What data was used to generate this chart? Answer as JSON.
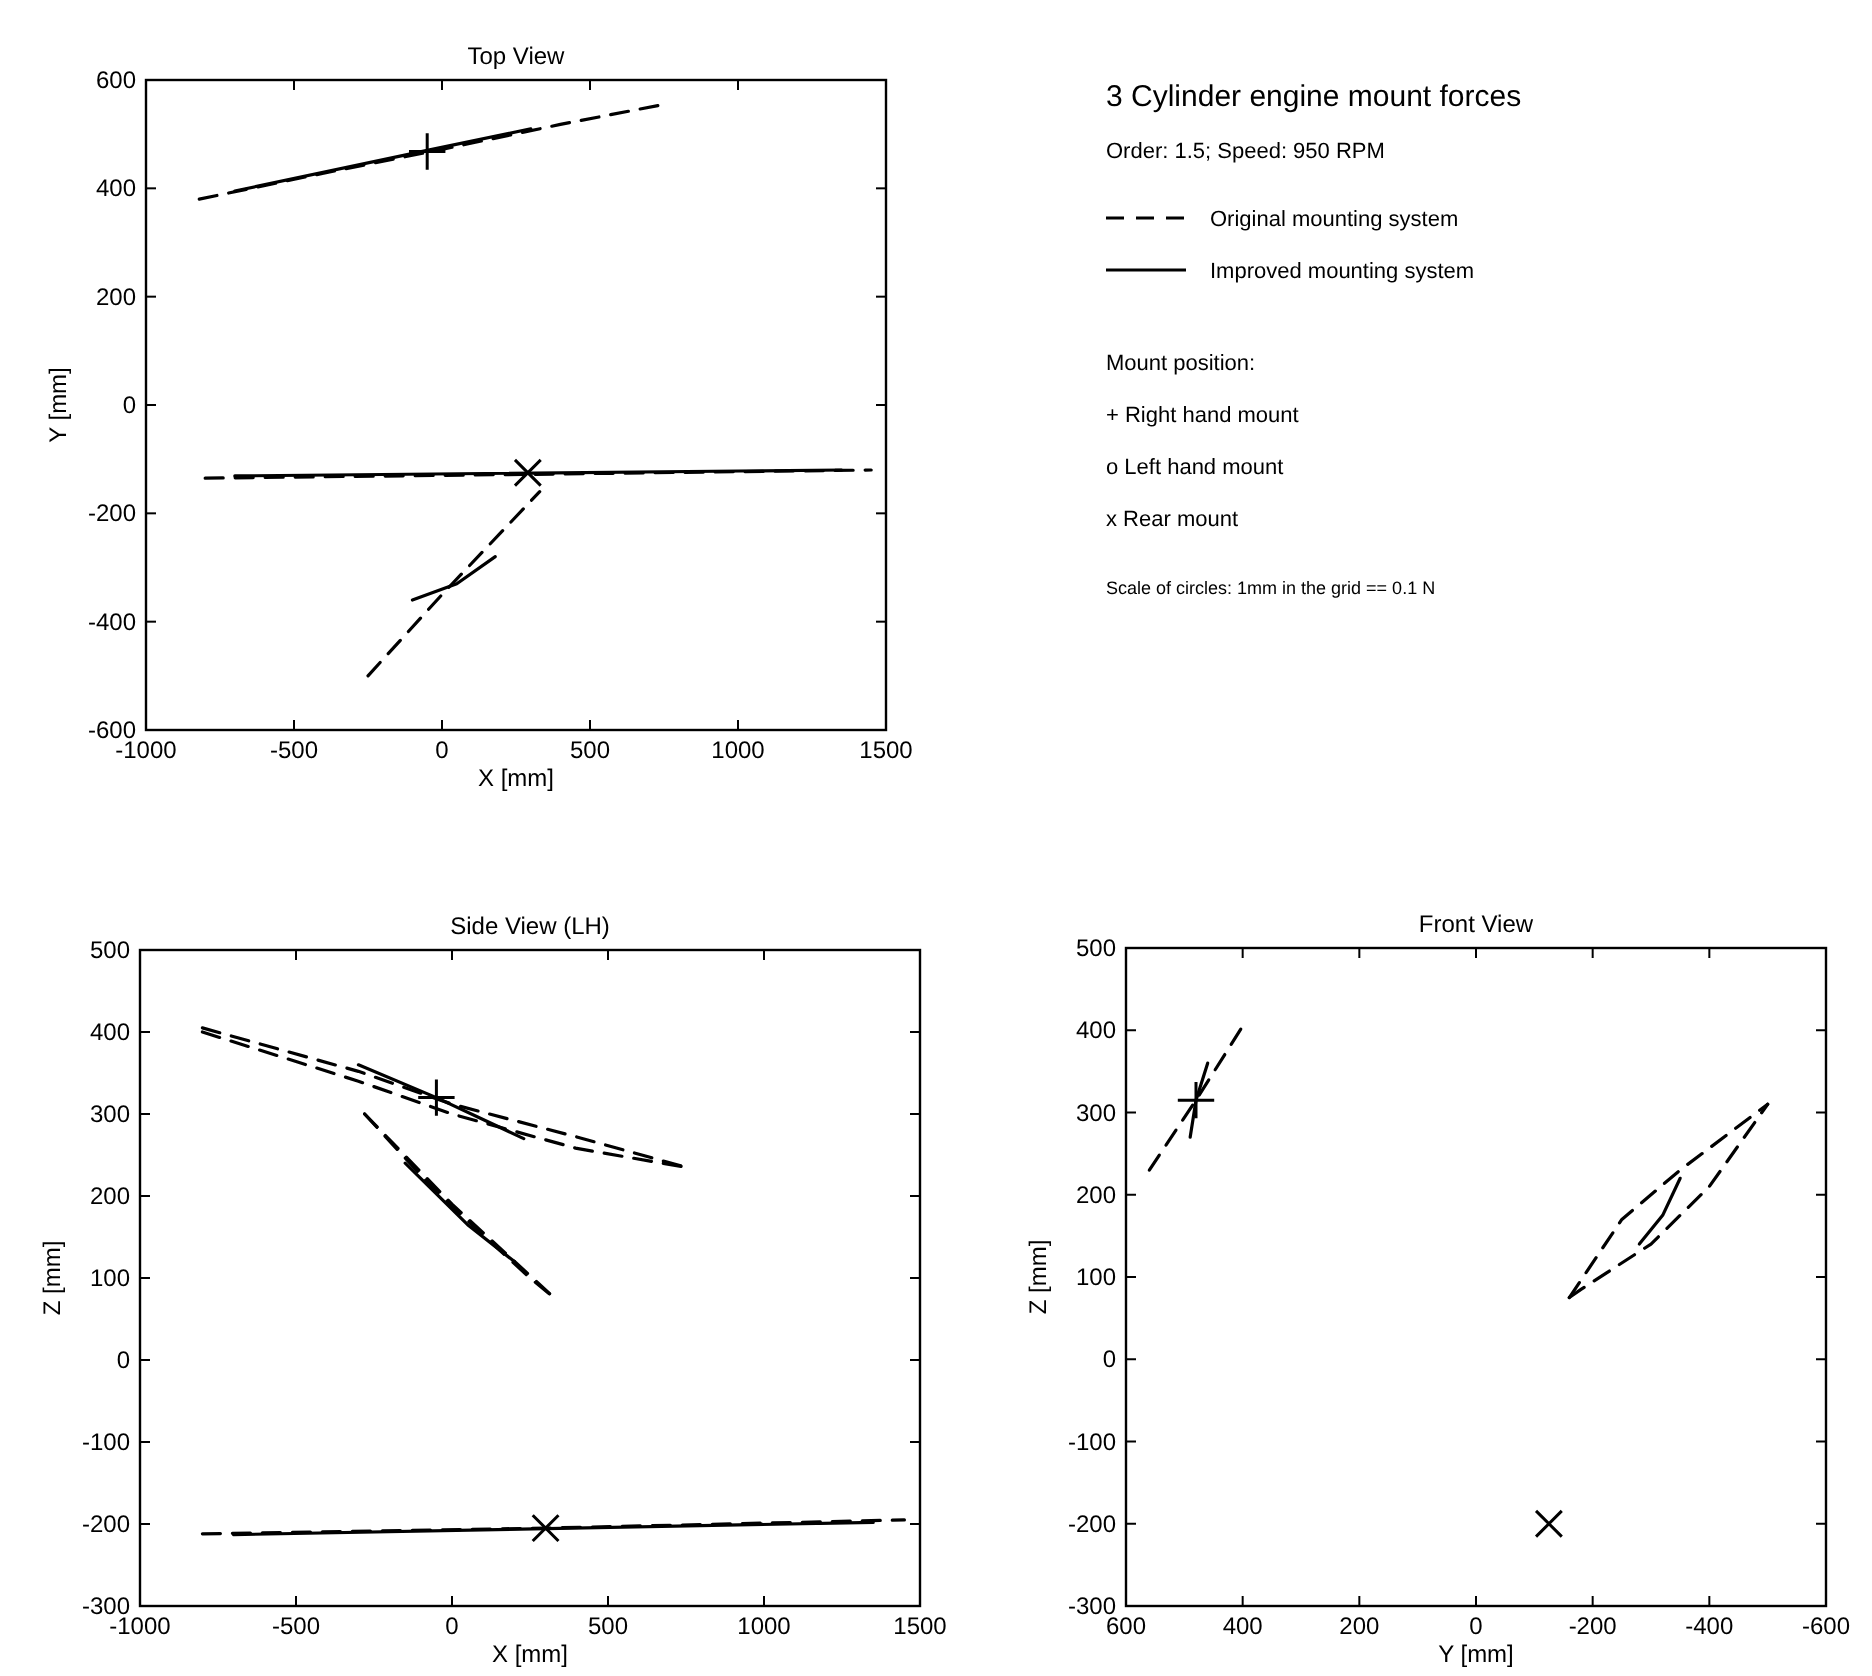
{
  "chart_data": [
    {
      "type": "line",
      "title": "Top View",
      "xlabel": "X [mm]",
      "ylabel": "Y [mm]",
      "xlim": [
        -1000,
        1500
      ],
      "xticks": [
        -1000,
        -500,
        0,
        500,
        1000,
        1500
      ],
      "ylim": [
        -600,
        600
      ],
      "yticks": [
        -600,
        -400,
        -200,
        0,
        200,
        400,
        600
      ],
      "legend": "right",
      "annotations": [
        "3 Cylinder engine mount forces",
        "Order: 1.5; Speed: 950 RPM",
        "Mount position:",
        "+ Right hand mount",
        "o Left hand mount",
        "x Rear mount",
        "Scale of circles: 1mm in the grid == 0.1 N"
      ],
      "series": [
        {
          "name": "Original mounting system",
          "line_style": "dashed",
          "color": "#000000",
          "x": [
            -820,
            -400,
            0,
            400,
            750
          ],
          "values": [
            380,
            428,
            472,
            518,
            555
          ]
        },
        {
          "name": "Improved mounting system",
          "line_style": "solid",
          "color": "#000000",
          "x": [
            -700,
            -50,
            300
          ],
          "values": [
            395,
            470,
            510
          ]
        },
        {
          "line_style": "dashed",
          "color": "#000000",
          "x": [
            -800,
            300,
            1450
          ],
          "values": [
            -135,
            -128,
            -120
          ]
        },
        {
          "line_style": "dashed",
          "color": "#000000",
          "x": [
            -250,
            0,
            330
          ],
          "values": [
            -500,
            -350,
            -160
          ]
        },
        {
          "line_style": "solid",
          "color": "#000000",
          "x": [
            -700,
            1350
          ],
          "values": [
            -131,
            -120
          ]
        },
        {
          "line_style": "solid",
          "color": "#000000",
          "x": [
            -100,
            50,
            180
          ],
          "values": [
            -360,
            -330,
            -280
          ]
        },
        {
          "type": "scatter",
          "marker": "plus",
          "color": "#000000",
          "x": [
            -50
          ],
          "values": [
            468
          ]
        },
        {
          "type": "scatter",
          "marker": "cross",
          "color": "#000000",
          "x": [
            290
          ],
          "values": [
            -125
          ]
        }
      ]
    },
    {
      "type": "line",
      "title": "Side View (LH)",
      "xlabel": "X [mm]",
      "ylabel": "Z [mm]",
      "xlim": [
        -1000,
        1500
      ],
      "xticks": [
        -1000,
        -500,
        0,
        500,
        1000,
        1500
      ],
      "ylim": [
        -300,
        500
      ],
      "yticks": [
        -300,
        -200,
        -100,
        0,
        100,
        200,
        300,
        400,
        500
      ],
      "series": [
        {
          "line_style": "dashed",
          "color": "#000000",
          "x": [
            -800,
            -300,
            0,
            400,
            750
          ],
          "values": [
            405,
            352,
            312,
            272,
            235
          ]
        },
        {
          "line_style": "dashed",
          "color": "#000000",
          "x": [
            -800,
            -300,
            0,
            400,
            750
          ],
          "values": [
            400,
            340,
            300,
            258,
            235
          ]
        },
        {
          "line_style": "dashed",
          "color": "#000000",
          "x": [
            -280,
            0,
            330
          ],
          "values": [
            300,
            190,
            75
          ]
        },
        {
          "line_style": "dashed",
          "color": "#000000",
          "x": [
            -280,
            -50,
            250,
            330
          ],
          "values": [
            300,
            205,
            100,
            75
          ]
        },
        {
          "line_style": "dashed",
          "color": "#000000",
          "x": [
            -800,
            300,
            1450
          ],
          "values": [
            -212,
            -205,
            -195
          ]
        },
        {
          "line_style": "solid",
          "color": "#000000",
          "x": [
            -300,
            -50,
            230
          ],
          "values": [
            360,
            320,
            270
          ]
        },
        {
          "line_style": "solid",
          "color": "#000000",
          "x": [
            -150,
            50,
            200
          ],
          "values": [
            240,
            165,
            120
          ]
        },
        {
          "line_style": "solid",
          "color": "#000000",
          "x": [
            -700,
            1350
          ],
          "values": [
            -213,
            -198
          ]
        },
        {
          "type": "scatter",
          "marker": "plus",
          "color": "#000000",
          "x": [
            -50
          ],
          "values": [
            320
          ]
        },
        {
          "type": "scatter",
          "marker": "cross",
          "color": "#000000",
          "x": [
            300
          ],
          "values": [
            -205
          ]
        }
      ]
    },
    {
      "type": "line",
      "title": "Front View",
      "xlabel": "Y [mm]",
      "ylabel": "Z [mm]",
      "xlim": [
        600,
        -600
      ],
      "xticks": [
        600,
        400,
        200,
        0,
        -200,
        -400,
        -600
      ],
      "ylim": [
        -300,
        500
      ],
      "yticks": [
        -300,
        -200,
        -100,
        0,
        100,
        200,
        300,
        400,
        500
      ],
      "series": [
        {
          "line_style": "dashed",
          "color": "#000000",
          "x": [
            560,
            480,
            400
          ],
          "values": [
            230,
            315,
            405
          ]
        },
        {
          "line_style": "dashed",
          "color": "#000000",
          "x": [
            -160,
            -250,
            -350,
            -500
          ],
          "values": [
            75,
            170,
            230,
            310
          ]
        },
        {
          "line_style": "dashed",
          "color": "#000000",
          "x": [
            -160,
            -180,
            -300,
            -400,
            -500
          ],
          "values": [
            75,
            85,
            140,
            210,
            310
          ]
        },
        {
          "line_style": "solid",
          "color": "#000000",
          "x": [
            490,
            480,
            460
          ],
          "values": [
            270,
            315,
            360
          ]
        },
        {
          "line_style": "solid",
          "color": "#000000",
          "x": [
            -280,
            -320,
            -350
          ],
          "values": [
            140,
            175,
            220
          ]
        },
        {
          "type": "scatter",
          "marker": "plus",
          "color": "#000000",
          "x": [
            480
          ],
          "values": [
            315
          ]
        },
        {
          "type": "scatter",
          "marker": "cross",
          "color": "#000000",
          "x": [
            -125
          ],
          "values": [
            -200
          ]
        }
      ]
    }
  ]
}
